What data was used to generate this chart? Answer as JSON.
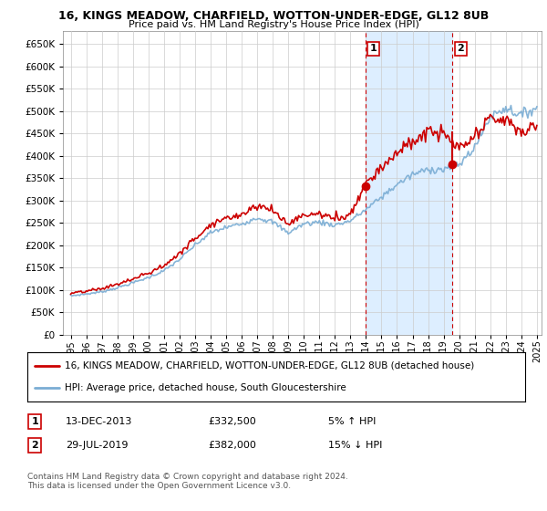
{
  "title": "16, KINGS MEADOW, CHARFIELD, WOTTON-UNDER-EDGE, GL12 8UB",
  "subtitle": "Price paid vs. HM Land Registry's House Price Index (HPI)",
  "legend_line1": "16, KINGS MEADOW, CHARFIELD, WOTTON-UNDER-EDGE, GL12 8UB (detached house)",
  "legend_line2": "HPI: Average price, detached house, South Gloucestershire",
  "transaction1_date": "13-DEC-2013",
  "transaction1_price": "£332,500",
  "transaction1_hpi": "5% ↑ HPI",
  "transaction2_date": "29-JUL-2019",
  "transaction2_price": "£382,000",
  "transaction2_hpi": "15% ↓ HPI",
  "footnote": "Contains HM Land Registry data © Crown copyright and database right 2024.\nThis data is licensed under the Open Government Licence v3.0.",
  "ylim": [
    0,
    680000
  ],
  "yticks": [
    0,
    50000,
    100000,
    150000,
    200000,
    250000,
    300000,
    350000,
    400000,
    450000,
    500000,
    550000,
    600000,
    650000
  ],
  "hpi_color": "#7aadd4",
  "price_color": "#cc0000",
  "marker_color": "#cc0000",
  "vline_color": "#cc0000",
  "bg_color": "#ffffff",
  "grid_color": "#cccccc",
  "highlight_color": "#ddeeff",
  "year_start": 1995,
  "year_end": 2025,
  "transaction1_year": 2013.96,
  "transaction2_year": 2019.57,
  "transaction1_value": 332500,
  "transaction2_value": 382000,
  "transaction2_prev_value": 452000
}
